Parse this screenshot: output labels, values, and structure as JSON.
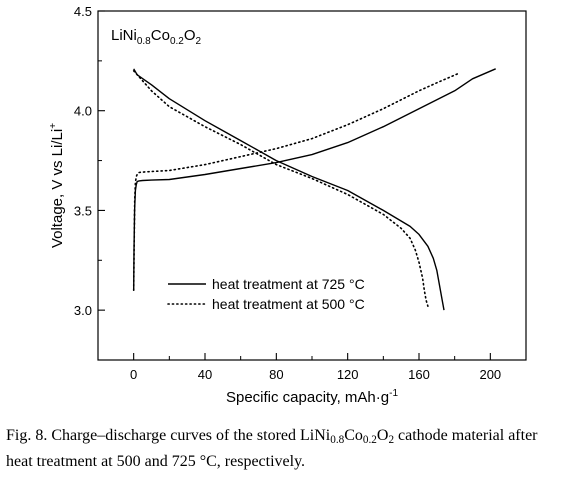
{
  "chart_data": {
    "type": "line",
    "xlabel": "Specific capacity, mAh·g",
    "xlabel_sup": "-1",
    "ylabel": "Voltage,  V vs Li/Li",
    "ylabel_sup": "+",
    "annotation": {
      "parts": [
        {
          "text": "LiNi",
          "sub": false
        },
        {
          "text": "0.8",
          "sub": true
        },
        {
          "text": "Co",
          "sub": false
        },
        {
          "text": "0.2",
          "sub": true
        },
        {
          "text": "O",
          "sub": false
        },
        {
          "text": "2",
          "sub": true
        }
      ]
    },
    "xlim": [
      -20,
      220
    ],
    "ylim": [
      2.75,
      4.5
    ],
    "xticks": [
      0,
      40,
      80,
      120,
      160,
      200
    ],
    "yticks": [
      3.0,
      3.5,
      4.0,
      4.5
    ],
    "ytick_labels": [
      "3.0",
      "3.5",
      "4.0",
      "4.5"
    ],
    "legend_position": "lower-left",
    "series": [
      {
        "name": "heat treatment at 725 °C",
        "style": "solid",
        "color": "#000000",
        "curves": [
          {
            "role": "charge",
            "x": [
              0,
              0.2,
              0.5,
              1,
              1.5,
              2,
              3,
              5,
              10,
              20,
              40,
              60,
              80,
              100,
              120,
              140,
              160,
              180,
              190,
              203
            ],
            "y": [
              3.1,
              3.3,
              3.5,
              3.6,
              3.63,
              3.645,
              3.648,
              3.65,
              3.652,
              3.655,
              3.68,
              3.71,
              3.74,
              3.78,
              3.84,
              3.92,
              4.01,
              4.1,
              4.16,
              4.21
            ]
          },
          {
            "role": "discharge",
            "x": [
              0,
              2,
              10,
              20,
              40,
              60,
              80,
              100,
              120,
              140,
              155,
              160,
              165,
              168,
              170,
              171,
              172,
              173,
              174
            ],
            "y": [
              4.21,
              4.18,
              4.13,
              4.06,
              3.95,
              3.85,
              3.75,
              3.67,
              3.6,
              3.5,
              3.42,
              3.38,
              3.32,
              3.26,
              3.2,
              3.15,
              3.1,
              3.05,
              3.0
            ]
          }
        ]
      },
      {
        "name": "heat treatment at 500 °C",
        "style": "dotted",
        "color": "#000000",
        "curves": [
          {
            "role": "charge",
            "x": [
              0,
              0.3,
              0.6,
              1,
              1.5,
              2,
              3,
              5,
              10,
              20,
              40,
              60,
              80,
              100,
              120,
              140,
              160,
              170,
              183
            ],
            "y": [
              3.1,
              3.35,
              3.55,
              3.64,
              3.67,
              3.68,
              3.69,
              3.692,
              3.695,
              3.7,
              3.73,
              3.77,
              3.81,
              3.86,
              3.93,
              4.01,
              4.1,
              4.14,
              4.19
            ]
          },
          {
            "role": "discharge",
            "x": [
              0,
              5,
              10,
              20,
              40,
              60,
              80,
              100,
              120,
              140,
              150,
              155,
              158,
              160,
              162,
              163,
              164,
              165
            ],
            "y": [
              4.2,
              4.15,
              4.1,
              4.02,
              3.92,
              3.83,
              3.73,
              3.66,
              3.58,
              3.48,
              3.41,
              3.36,
              3.3,
              3.24,
              3.16,
              3.1,
              3.05,
              3.02
            ]
          }
        ]
      }
    ]
  },
  "caption": {
    "parts": [
      {
        "text": "Fig. 8.  Charge–discharge curves of the stored LiNi",
        "sub": false
      },
      {
        "text": "0.8",
        "sub": true
      },
      {
        "text": "Co",
        "sub": false
      },
      {
        "text": "0.2",
        "sub": true
      },
      {
        "text": "O",
        "sub": false
      },
      {
        "text": "2",
        "sub": true
      },
      {
        "text": " cathode material after heat treatment at 500 and 725 °C, respectively.",
        "sub": false
      }
    ]
  }
}
